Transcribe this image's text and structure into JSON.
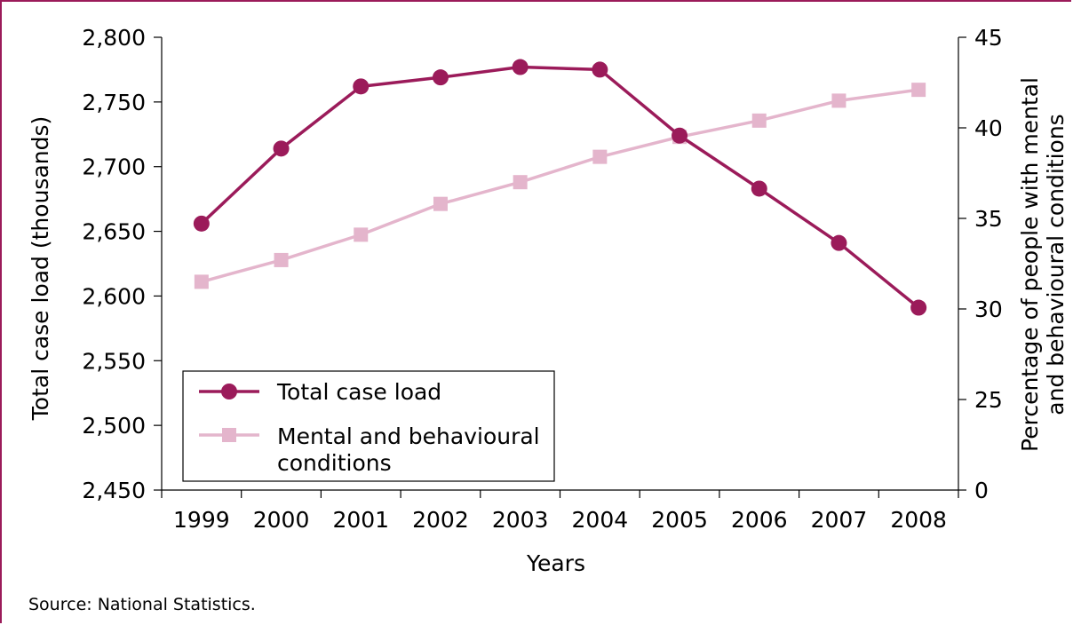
{
  "chart_data": {
    "type": "line",
    "x": [
      "1999",
      "2000",
      "2001",
      "2002",
      "2003",
      "2004",
      "2005",
      "2006",
      "2007",
      "2008"
    ],
    "xlabel": "Years",
    "y_left": {
      "label": "Total case load (thousands)",
      "range": [
        2450,
        2800
      ],
      "ticks": [
        2450,
        2500,
        2550,
        2600,
        2650,
        2700,
        2750,
        2800
      ],
      "tick_labels": [
        "2,450",
        "2,500",
        "2,550",
        "2,600",
        "2,650",
        "2,700",
        "2,750",
        "2,800"
      ]
    },
    "y_right": {
      "label_line1": "Percentage of people with mental",
      "label_line2": "and behavioural conditions",
      "range": [
        20,
        45
      ],
      "bottom_label": "0",
      "ticks": [
        25,
        30,
        35,
        40,
        45
      ],
      "tick_labels": [
        "25",
        "30",
        "35",
        "40",
        "45"
      ]
    },
    "series": [
      {
        "name": "Total case load",
        "axis": "left",
        "marker": "circle",
        "color": "#9b1b5a",
        "values": [
          2656,
          2714,
          2762,
          2769,
          2777,
          2775,
          2724,
          2683,
          2641,
          2591
        ]
      },
      {
        "name_line1": "Mental and behavioural",
        "name_line2": "conditions",
        "axis": "right",
        "marker": "square",
        "color": "#e4b5cc",
        "values": [
          31.5,
          32.7,
          34.1,
          35.8,
          37.0,
          38.4,
          39.5,
          40.4,
          41.5,
          42.1
        ]
      }
    ],
    "legend": "bottom-left",
    "grid": false
  },
  "source": "Source: National Statistics."
}
